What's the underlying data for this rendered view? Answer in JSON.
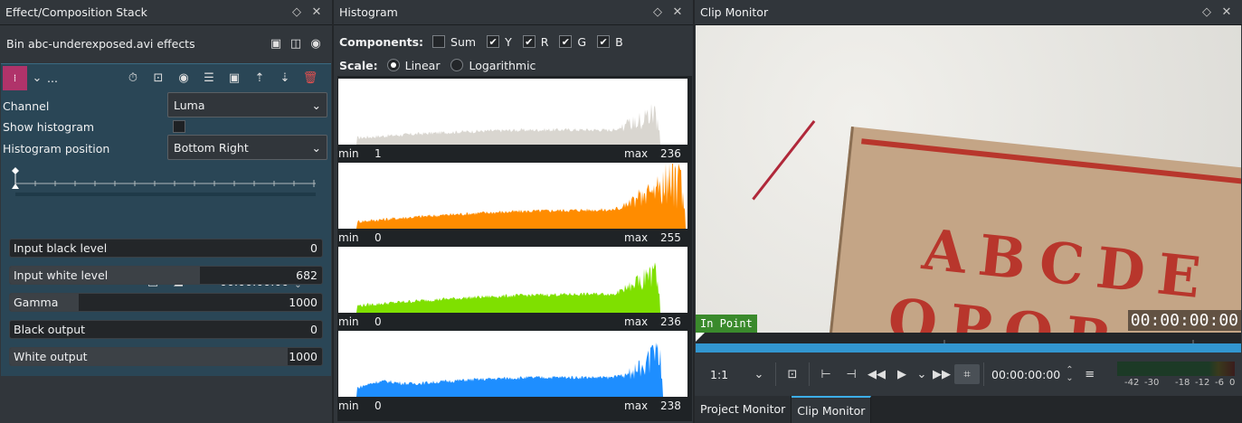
{
  "effect_panel": {
    "title": "Effect/Composition Stack",
    "bin_label": "Bin abc-underexposed.avi effects",
    "effect_name_ellipsis": "...",
    "params": [
      {
        "label": "Channel",
        "type": "combo",
        "value": "Luma"
      },
      {
        "label": "Show histogram",
        "type": "checkbox",
        "value": false
      },
      {
        "label": "Histogram position",
        "type": "combo",
        "value": "Bottom Right"
      }
    ],
    "timecode": "00:00:00:00",
    "sliders": [
      {
        "label": "Input black level",
        "value": "0",
        "fill": 0.0
      },
      {
        "label": "Input white level",
        "value": "682",
        "fill": 0.61
      },
      {
        "label": "Gamma",
        "value": "1000",
        "fill": 0.22
      },
      {
        "label": "Black output",
        "value": "0",
        "fill": 0.0
      },
      {
        "label": "White output",
        "value": "1000",
        "fill": 0.89
      }
    ]
  },
  "histogram_panel": {
    "title": "Histogram",
    "components_label": "Components:",
    "components": [
      {
        "label": "Sum",
        "checked": false
      },
      {
        "label": "Y",
        "checked": true
      },
      {
        "label": "R",
        "checked": true
      },
      {
        "label": "G",
        "checked": true
      },
      {
        "label": "B",
        "checked": true
      }
    ],
    "scale_label": "Scale:",
    "scales": [
      {
        "label": "Linear",
        "selected": true
      },
      {
        "label": "Logarithmic",
        "selected": false
      }
    ],
    "channels": [
      {
        "color": "#d9d6d0",
        "min_label": "min",
        "min": "1",
        "max_label": "max",
        "max": "236"
      },
      {
        "color": "#ff8c00",
        "min_label": "min",
        "min": "0",
        "max_label": "max",
        "max": "255"
      },
      {
        "color": "#7fe000",
        "min_label": "min",
        "min": "0",
        "max_label": "max",
        "max": "236"
      },
      {
        "color": "#1e8eff",
        "min_label": "min",
        "min": "0",
        "max_label": "max",
        "max": "238"
      }
    ]
  },
  "monitor_panel": {
    "title": "Clip Monitor",
    "in_point": "In Point",
    "overlay_timecode": "00:00:00:00",
    "zoom": "1:1",
    "timecode": "00:00:00:00",
    "meter_labels": [
      "-42",
      "-30",
      "-18",
      "-12",
      "-6",
      "0"
    ],
    "tabs": [
      {
        "label": "Project Monitor",
        "active": false
      },
      {
        "label": "Clip Monitor",
        "active": true
      }
    ],
    "video_text_line1": "ABCDE",
    "video_text_line2": "OPQR"
  },
  "colors": {
    "accent": "#3daee9",
    "effect_badge": "#b0336a",
    "in_point": "#3a8a2c"
  }
}
